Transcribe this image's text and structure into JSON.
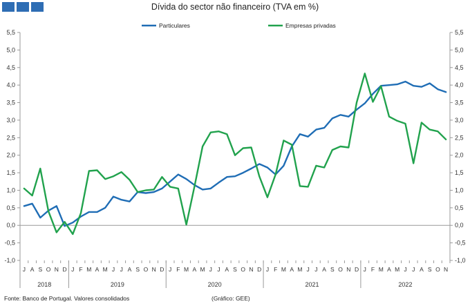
{
  "header": {
    "title": "Dívida do sector não financeiro (TVA em %)"
  },
  "footer": {
    "source": "Fonte: Banco de Portugal. Valores consolidados",
    "credit": "(Gráfico: GEE)"
  },
  "colors": {
    "particulares": "#1f6db5",
    "empresas": "#21a24d",
    "logo": "#2e6db4"
  },
  "chart_data": {
    "type": "line",
    "title": "Dívida do sector não financeiro (TVA em %)",
    "ylim": [
      -1.0,
      5.5
    ],
    "yticks": [
      "5,5",
      "5,0",
      "4,5",
      "4,0",
      "3,5",
      "3,0",
      "2,5",
      "2,0",
      "1,5",
      "1,0",
      "0,5",
      "0,0",
      "-0,5",
      "-1,0"
    ],
    "ytick_values": [
      5.5,
      5.0,
      4.5,
      4.0,
      3.5,
      3.0,
      2.5,
      2.0,
      1.5,
      1.0,
      0.5,
      0.0,
      -0.5,
      -1.0
    ],
    "grid": false,
    "legend": "top-center",
    "months": [
      "J",
      "A",
      "S",
      "O",
      "N",
      "D",
      "J",
      "F",
      "M",
      "A",
      "M",
      "J",
      "J",
      "A",
      "S",
      "O",
      "N",
      "D",
      "J",
      "F",
      "M",
      "A",
      "M",
      "J",
      "J",
      "A",
      "S",
      "O",
      "N",
      "D",
      "J",
      "F",
      "M",
      "A",
      "M",
      "J",
      "J",
      "A",
      "S",
      "O",
      "N",
      "D",
      "J",
      "F",
      "M",
      "A",
      "M",
      "J",
      "J",
      "A",
      "S",
      "O",
      "N"
    ],
    "years": [
      {
        "label": "2018",
        "start": 0,
        "end": 5
      },
      {
        "label": "2019",
        "start": 6,
        "end": 17
      },
      {
        "label": "2020",
        "start": 18,
        "end": 29
      },
      {
        "label": "2021",
        "start": 30,
        "end": 41
      },
      {
        "label": "2022",
        "start": 42,
        "end": 52
      }
    ],
    "series": [
      {
        "name": "Particulares",
        "values": [
          0.55,
          0.62,
          0.22,
          0.42,
          0.55,
          -0.02,
          0.08,
          0.25,
          0.38,
          0.38,
          0.5,
          0.82,
          0.73,
          0.68,
          0.95,
          0.92,
          0.95,
          1.05,
          1.25,
          1.45,
          1.32,
          1.15,
          1.02,
          1.05,
          1.22,
          1.38,
          1.4,
          1.5,
          1.62,
          1.75,
          1.65,
          1.45,
          1.7,
          2.25,
          2.6,
          2.53,
          2.73,
          2.78,
          3.05,
          3.15,
          3.1,
          3.3,
          3.48,
          3.75,
          3.98,
          4.0,
          4.02,
          4.1,
          3.98,
          3.95,
          4.05,
          3.88,
          3.8
        ]
      },
      {
        "name": "Empresas privadas",
        "values": [
          1.05,
          0.85,
          1.62,
          0.4,
          -0.2,
          0.1,
          -0.25,
          0.35,
          1.55,
          1.57,
          1.32,
          1.4,
          1.52,
          1.3,
          0.95,
          1.0,
          1.02,
          1.38,
          1.1,
          1.05,
          0.02,
          1.1,
          2.25,
          2.65,
          2.68,
          2.6,
          2.0,
          2.2,
          2.22,
          1.4,
          0.8,
          1.45,
          2.42,
          2.3,
          1.12,
          1.1,
          1.7,
          1.65,
          2.15,
          2.25,
          2.22,
          3.5,
          4.33,
          3.52,
          3.97,
          3.1,
          2.98,
          2.9,
          1.77,
          2.93,
          2.73,
          2.68,
          2.45
        ]
      }
    ]
  }
}
